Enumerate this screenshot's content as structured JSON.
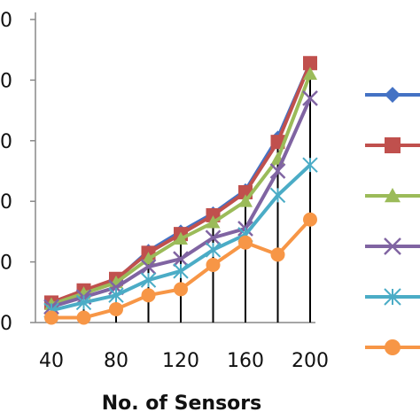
{
  "chart_data": {
    "type": "line",
    "title": "",
    "xlabel": "No. of Sensors",
    "ylabel": "",
    "x": [
      40,
      60,
      80,
      100,
      120,
      140,
      160,
      180,
      200
    ],
    "x_tick_labels": [
      "40",
      "80",
      "120",
      "160",
      "200"
    ],
    "y_tick_labels": [
      "0",
      "0",
      "0",
      "0",
      "0",
      "0"
    ],
    "ylim": [
      0,
      5
    ],
    "grid": false,
    "legend_position": "right",
    "series": [
      {
        "marker": "diamond",
        "color": "#4472C4",
        "values": [
          0.32,
          0.52,
          0.7,
          1.18,
          1.5,
          1.8,
          2.18,
          3.05,
          4.28
        ]
      },
      {
        "marker": "square",
        "color": "#C0504D",
        "values": [
          0.33,
          0.53,
          0.72,
          1.15,
          1.46,
          1.77,
          2.15,
          2.98,
          4.28
        ]
      },
      {
        "marker": "triangle",
        "color": "#9BBB59",
        "values": [
          0.3,
          0.48,
          0.66,
          1.05,
          1.38,
          1.65,
          2.0,
          2.7,
          4.1
        ]
      },
      {
        "marker": "x",
        "color": "#8064A2",
        "values": [
          0.26,
          0.42,
          0.58,
          0.92,
          1.05,
          1.4,
          1.55,
          2.5,
          3.7
        ]
      },
      {
        "marker": "star",
        "color": "#4BACC6",
        "values": [
          0.2,
          0.33,
          0.45,
          0.7,
          0.85,
          1.2,
          1.45,
          2.1,
          2.6
        ]
      },
      {
        "marker": "circle",
        "color": "#F79646",
        "values": [
          0.08,
          0.08,
          0.22,
          0.45,
          0.55,
          0.95,
          1.32,
          1.12,
          1.7
        ]
      }
    ]
  }
}
